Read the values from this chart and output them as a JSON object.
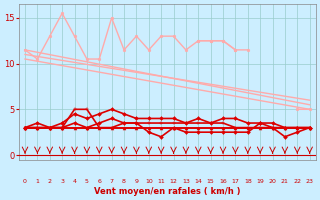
{
  "xlabel": "Vent moyen/en rafales ( km/h )",
  "bg_color": "#cceeff",
  "grid_color": "#99cccc",
  "x_ticks": [
    0,
    1,
    2,
    3,
    4,
    5,
    6,
    7,
    8,
    9,
    10,
    11,
    12,
    13,
    14,
    15,
    16,
    17,
    18,
    19,
    20,
    21,
    22,
    23
  ],
  "ylim": [
    -0.5,
    16.5
  ],
  "xlim": [
    -0.5,
    23.5
  ],
  "yticks": [
    0,
    5,
    10,
    15
  ],
  "series": [
    {
      "name": "dark_flat",
      "color": "#dd0000",
      "lw": 1.4,
      "marker": "^",
      "ms": 2.2,
      "y": [
        3,
        3,
        3,
        3,
        3,
        3,
        3,
        3,
        3,
        3,
        3,
        3,
        3,
        3,
        3,
        3,
        3,
        3,
        3,
        3,
        3,
        3,
        3,
        3
      ]
    },
    {
      "name": "dark_wavy1",
      "color": "#dd0000",
      "lw": 1.2,
      "marker": "+",
      "ms": 3.0,
      "y": [
        3.0,
        3.0,
        3.0,
        3.0,
        5.0,
        5.0,
        3.0,
        3.0,
        3.5,
        3.5,
        3.5,
        3.5,
        3.5,
        3.5,
        3.5,
        3.5,
        3.5,
        3.0,
        3.0,
        3.0,
        3.0,
        3.0,
        3.0,
        3.0
      ]
    },
    {
      "name": "dark_wavy2",
      "color": "#dd0000",
      "lw": 1.2,
      "marker": "D",
      "ms": 2.0,
      "y": [
        3.0,
        3.0,
        3.0,
        3.5,
        4.5,
        4.0,
        4.5,
        5.0,
        4.5,
        4.0,
        4.0,
        4.0,
        4.0,
        3.5,
        4.0,
        3.5,
        4.0,
        4.0,
        3.5,
        3.5,
        3.5,
        3.0,
        3.0,
        3.0
      ]
    },
    {
      "name": "dark_wavy3",
      "color": "#dd0000",
      "lw": 1.2,
      "marker": "D",
      "ms": 2.0,
      "y": [
        3.0,
        3.5,
        3.0,
        3.0,
        3.5,
        3.0,
        3.5,
        4.0,
        3.5,
        3.5,
        2.5,
        2.0,
        3.0,
        2.5,
        2.5,
        2.5,
        2.5,
        2.5,
        2.5,
        3.5,
        3.0,
        2.0,
        2.5,
        3.0
      ]
    },
    {
      "name": "light_zigzag",
      "color": "#ffaaaa",
      "lw": 1.0,
      "marker": "o",
      "ms": 2.0,
      "y": [
        11.5,
        10.5,
        13.0,
        15.5,
        13.0,
        10.5,
        10.5,
        15.0,
        11.5,
        13.0,
        11.5,
        13.0,
        13.0,
        11.5,
        12.5,
        12.5,
        12.5,
        11.5,
        null,
        null,
        null,
        null,
        null,
        null
      ]
    },
    {
      "name": "light_wavy_right",
      "color": "#ffaaaa",
      "lw": 1.0,
      "marker": "o",
      "ms": 2.0,
      "y": [
        null,
        null,
        null,
        null,
        null,
        null,
        null,
        null,
        null,
        null,
        null,
        null,
        null,
        null,
        12.5,
        12.5,
        12.5,
        11.5,
        11.5,
        null,
        null,
        null,
        5.0,
        5.0
      ]
    },
    {
      "name": "light_diag1",
      "color": "#ffaaaa",
      "lw": 1.0,
      "marker": null,
      "ms": 0,
      "x": [
        0,
        23
      ],
      "y": [
        11.5,
        5.5
      ]
    },
    {
      "name": "light_diag2",
      "color": "#ffaaaa",
      "lw": 1.0,
      "marker": null,
      "ms": 0,
      "x": [
        0,
        23
      ],
      "y": [
        10.5,
        5.0
      ]
    },
    {
      "name": "light_diag3",
      "color": "#ffaaaa",
      "lw": 1.0,
      "marker": null,
      "ms": 0,
      "x": [
        0,
        23
      ],
      "y": [
        11.0,
        6.0
      ]
    }
  ],
  "arrows": {
    "color": "#dd0000",
    "symbols": [
      "v",
      "v",
      "v",
      "v",
      "v",
      "v",
      "v",
      "v",
      "v",
      "v",
      "v",
      "v",
      "v",
      "v",
      "v",
      "v",
      "v",
      "v",
      "v",
      "v",
      "v",
      "v",
      "v",
      "v"
    ]
  }
}
